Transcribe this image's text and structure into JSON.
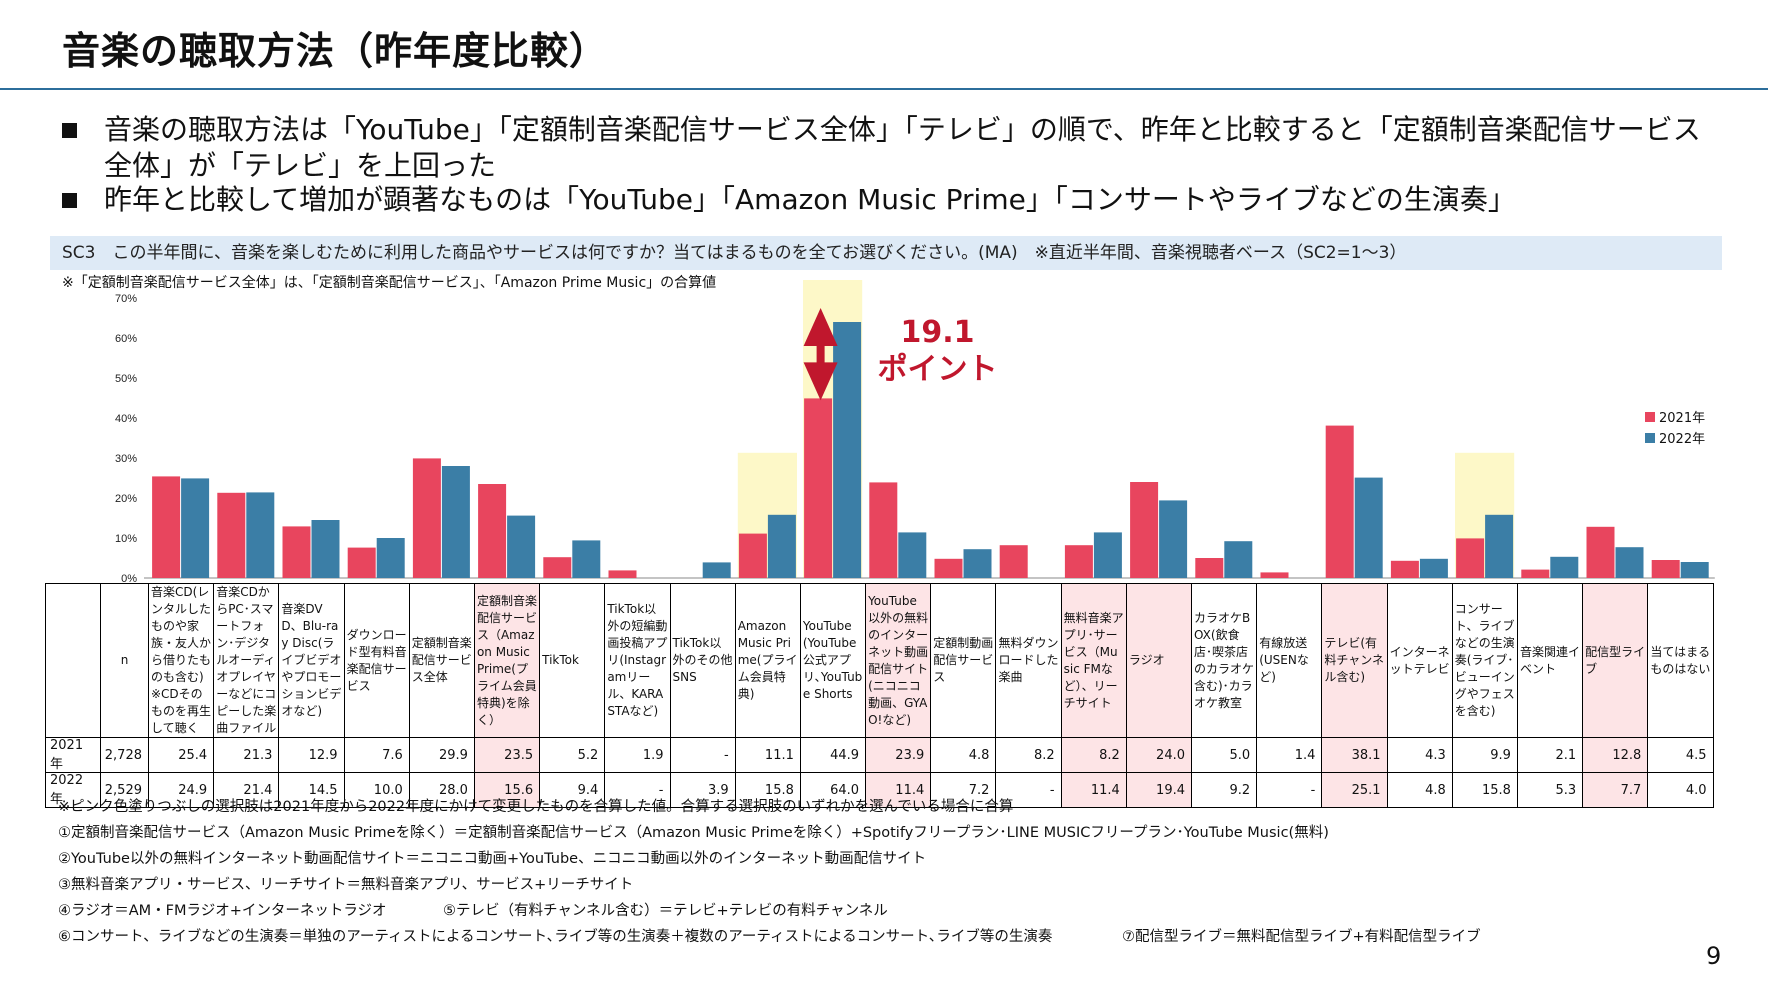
{
  "slide": {
    "title": "音楽の聴取方法（昨年度比較）",
    "bullets": [
      "音楽の聴取方法は「YouTube」「定額制音楽配信サービス全体」「テレビ」の順で、昨年と比較すると「定額制音楽配信サービス全体」が「テレビ」を上回った",
      "昨年と比較して増加が顕著なものは「YouTube」「Amazon Music Prime」「コンサートやライブなどの生演奏」"
    ],
    "question": "SC3　この半年間に、音楽を楽しむために利用した商品やサービスは何ですか？当てはまるものを全てお選びください。(MA)　※直近半年間、音楽視聴者ベース（SC2=1～3）",
    "subnote": "※「定額制音楽配信サービス全体」は、「定額制音楽配信サービス」、「Amazon Prime Music」の合算値",
    "callout": {
      "line1": "19.1",
      "line2": "ポイント"
    },
    "page_number": "9",
    "footnotes": [
      "※ピンク色塗りつぶしの選択肢は2021年度から2022年度にかけて変更したものを合算した値。合算する選択肢のいずれかを選んでいる場合に合算",
      "①定額制音楽配信サービス（Amazon Music Primeを除く）＝定額制音楽配信サービス（Amazon Music Primeを除く）+Spotifyフリープラン･LINE MUSICフリープラン･YouTube Music(無料)",
      "②YouTube以外の無料インターネット動画配信サイト＝ニコニコ動画+YouTube、ニコニコ動画以外のインターネット動画配信サイト",
      "③無料音楽アプリ・サービス、リーチサイト＝無料音楽アプリ、サービス+リーチサイト"
    ],
    "footnote_pairs": [
      [
        "④ラジオ＝AM・FMラジオ+インターネットラジオ",
        "⑤テレビ（有料チャンネル含む）＝テレビ+テレビの有料チャンネル"
      ],
      [
        "⑥コンサート、ライブなどの生演奏＝単独のアーティストによるコンサート､ライブ等の生演奏＋複数のアーティストによるコンサート､ライブ等の生演奏",
        "⑦配信型ライブ＝無料配信型ライブ+有料配信型ライブ"
      ]
    ]
  },
  "table": {
    "n_header": "n",
    "rows": [
      {
        "label": "2021年",
        "n": "2,728",
        "cells": [
          "25.4",
          "21.3",
          "12.9",
          "7.6",
          "29.9",
          "23.5",
          "5.2",
          "1.9",
          "-",
          "11.1",
          "44.9",
          "23.9",
          "4.8",
          "8.2",
          "8.2",
          "24.0",
          "5.0",
          "1.4",
          "38.1",
          "4.3",
          "9.9",
          "2.1",
          "12.8",
          "4.5"
        ]
      },
      {
        "label": "2022年",
        "n": "2,529",
        "cells": [
          "24.9",
          "21.4",
          "14.5",
          "10.0",
          "28.0",
          "15.6",
          "9.4",
          "-",
          "3.9",
          "15.8",
          "64.0",
          "11.4",
          "7.2",
          "-",
          "11.4",
          "19.4",
          "9.2",
          "-",
          "25.1",
          "4.8",
          "15.8",
          "5.3",
          "7.7",
          "4.0"
        ]
      }
    ]
  },
  "chart_data": {
    "type": "bar",
    "categories": [
      "音楽CD(レンタルしたものや家族・友人から借りたものも含む)※CDそのものを再生して聴く",
      "音楽CDからPC･スマートフォン･デジタルオーディオプレイヤーなどにコピーした楽曲ファイル",
      "音楽DVD、Blu-ray Disc(ライブビデオやプロモーションビデオなど)",
      "ダウンロード型有料音楽配信サービス",
      "定額制音楽配信サービス全体",
      "定額制音楽配信サービス（Amazon Music Prime(プライム会員特典)を除く）",
      "TikTok",
      "TikTok以外の短編動画投稿アプリ(Instagramリール、KARASTAなど)",
      "TikTok以外のその他SNS",
      "Amazon Music Prime(プライム会員特典)",
      "YouTube(YouTube公式アプリ､YouTube Shorts",
      "YouTube以外の無料のインターネット動画配信サイト(ニコニコ動画、GYAO!など)",
      "定額制動画配信サービス",
      "無料ダウンロードした楽曲",
      "無料音楽アプリ･サービス（Music FMなど）、リーチサイト",
      "ラジオ",
      "カラオケBOX(飲食店･喫茶店のカラオケ含む)･カラオケ教室",
      "有線放送(USENなど)",
      "テレビ(有料チャンネル含む)",
      "インターネットテレビ",
      "コンサート、ライブなどの生演奏(ライブ･ビューイングやフェスを含む)",
      "音楽関連イベント",
      "配信型ライブ",
      "当てはまるものはない"
    ],
    "pink_columns": [
      5,
      11,
      14,
      15,
      18,
      22
    ],
    "highlight_columns": [
      9,
      10,
      20
    ],
    "series": [
      {
        "name": "2021年",
        "color": "#e8455e",
        "values": [
          25.4,
          21.3,
          12.9,
          7.6,
          29.9,
          23.5,
          5.2,
          1.9,
          null,
          11.1,
          44.9,
          23.9,
          4.8,
          8.2,
          8.2,
          24.0,
          5.0,
          1.4,
          38.1,
          4.3,
          9.9,
          2.1,
          12.8,
          4.5
        ]
      },
      {
        "name": "2022年",
        "color": "#3b7ea6",
        "values": [
          24.9,
          21.4,
          14.5,
          10.0,
          28.0,
          15.6,
          9.4,
          null,
          3.9,
          15.8,
          64.0,
          11.4,
          7.2,
          null,
          11.4,
          19.4,
          9.2,
          null,
          25.1,
          4.8,
          15.8,
          5.3,
          7.7,
          4.0
        ]
      }
    ],
    "ylim": [
      0,
      70
    ],
    "yticks": [
      "0%",
      "10%",
      "20%",
      "30%",
      "40%",
      "50%",
      "60%",
      "70%"
    ],
    "grid": false,
    "legend": "right",
    "highlight_color": "#fdf8c8",
    "arrow_color": "#c0172d"
  }
}
